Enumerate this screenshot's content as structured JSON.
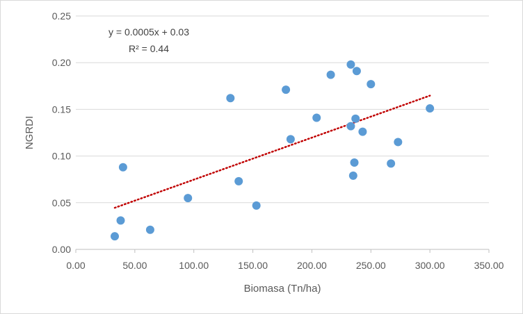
{
  "chart_data": {
    "type": "scatter",
    "title": "",
    "xlabel": "Biomasa (Tn/ha)",
    "ylabel": "NGRDI",
    "xlim": [
      0,
      350
    ],
    "ylim": [
      0,
      0.25
    ],
    "x_ticks": [
      "0.00",
      "50.00",
      "100.00",
      "150.00",
      "200.00",
      "250.00",
      "300.00",
      "350.00"
    ],
    "y_ticks": [
      "0.00",
      "0.05",
      "0.10",
      "0.15",
      "0.20",
      "0.25"
    ],
    "grid": "horizontal",
    "series": [
      {
        "name": "NGRDI",
        "color": "#5b9bd5",
        "points": [
          {
            "x": 33,
            "y": 0.014
          },
          {
            "x": 38,
            "y": 0.031
          },
          {
            "x": 40,
            "y": 0.088
          },
          {
            "x": 63,
            "y": 0.021
          },
          {
            "x": 95,
            "y": 0.055
          },
          {
            "x": 131,
            "y": 0.162
          },
          {
            "x": 138,
            "y": 0.073
          },
          {
            "x": 153,
            "y": 0.047
          },
          {
            "x": 178,
            "y": 0.171
          },
          {
            "x": 182,
            "y": 0.118
          },
          {
            "x": 204,
            "y": 0.141
          },
          {
            "x": 216,
            "y": 0.187
          },
          {
            "x": 233,
            "y": 0.198
          },
          {
            "x": 233,
            "y": 0.132
          },
          {
            "x": 235,
            "y": 0.079
          },
          {
            "x": 236,
            "y": 0.093
          },
          {
            "x": 237,
            "y": 0.14
          },
          {
            "x": 238,
            "y": 0.191
          },
          {
            "x": 243,
            "y": 0.126
          },
          {
            "x": 250,
            "y": 0.177
          },
          {
            "x": 267,
            "y": 0.092
          },
          {
            "x": 273,
            "y": 0.115
          },
          {
            "x": 300,
            "y": 0.151
          }
        ]
      }
    ],
    "trendline": {
      "type": "linear",
      "color": "#c00000",
      "style": "dotted",
      "slope": 0.00045,
      "intercept": 0.0297,
      "x_start": 33,
      "x_end": 300
    },
    "annotations": {
      "equation": "y = 0.0005x + 0.03",
      "r_squared": "R² = 0.44"
    }
  }
}
